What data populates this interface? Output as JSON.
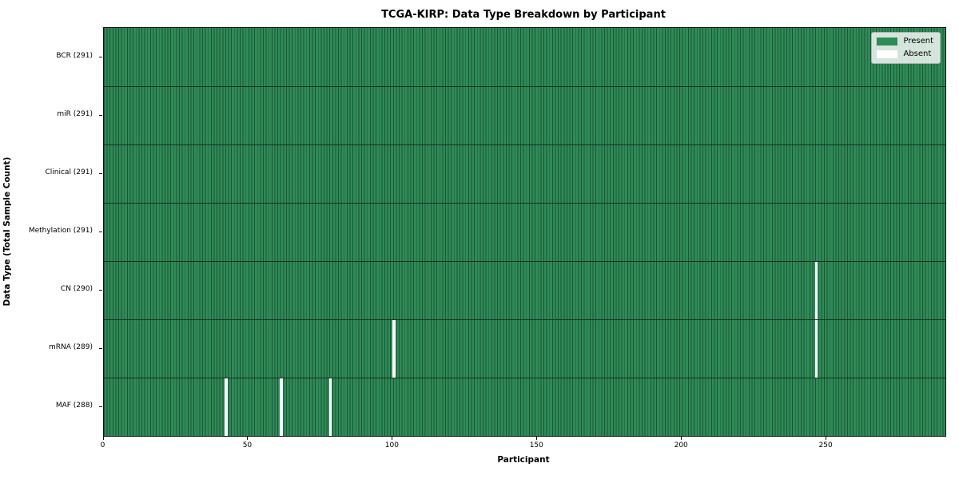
{
  "chart_data": {
    "type": "heatmap",
    "title": "TCGA-KIRP: Data Type Breakdown by Participant",
    "xlabel": "Participant",
    "ylabel": "Data Type (Total Sample Count)",
    "n_participants": 291,
    "x_range": [
      0,
      291
    ],
    "x_ticks": [
      0,
      50,
      100,
      150,
      200,
      250
    ],
    "grid": "cell-edges",
    "legend_position": "upper right",
    "rows": [
      {
        "data_type": "BCR",
        "label": "BCR (291)",
        "count": 291,
        "absent_participants": []
      },
      {
        "data_type": "miR",
        "label": "miR (291)",
        "count": 291,
        "absent_participants": []
      },
      {
        "data_type": "Clinical",
        "label": "Clinical (291)",
        "count": 291,
        "absent_participants": []
      },
      {
        "data_type": "Methylation",
        "label": "Methylation (291)",
        "count": 291,
        "absent_participants": []
      },
      {
        "data_type": "CN",
        "label": "CN (290)",
        "count": 290,
        "absent_participants": [
          246
        ]
      },
      {
        "data_type": "mRNA",
        "label": "mRNA (289)",
        "count": 289,
        "absent_participants": [
          100,
          246
        ]
      },
      {
        "data_type": "MAF",
        "label": "MAF (288)",
        "count": 288,
        "absent_participants": [
          42,
          61,
          78
        ]
      }
    ],
    "legend": [
      {
        "label": "Present",
        "color": "#2e8b57"
      },
      {
        "label": "Absent",
        "color": "#ffffff"
      }
    ],
    "colors": {
      "present": "#2e8b57",
      "cell_edge": "#1c5434",
      "absent": "#ffffff",
      "row_separator": "#143022",
      "plot_border": "#111111",
      "legend_bg": "#eaf0e8"
    }
  }
}
